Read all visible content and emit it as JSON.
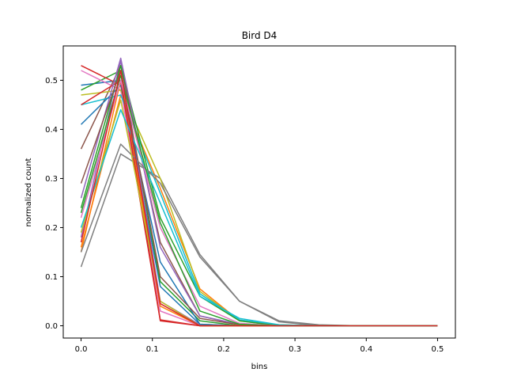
{
  "chart_data": {
    "type": "line",
    "title": "Bird D4",
    "xlabel": "bins",
    "ylabel": "normalized count",
    "xlim": [
      -0.025,
      0.525
    ],
    "ylim": [
      -0.025,
      0.57
    ],
    "xticks": [
      0.0,
      0.1,
      0.2,
      0.3,
      0.4,
      0.5
    ],
    "xtick_labels": [
      "0.0",
      "0.1",
      "0.2",
      "0.3",
      "0.4",
      "0.5"
    ],
    "yticks": [
      0.0,
      0.1,
      0.2,
      0.3,
      0.4,
      0.5
    ],
    "ytick_labels": [
      "0.0",
      "0.1",
      "0.2",
      "0.3",
      "0.4",
      "0.5"
    ],
    "grid": false,
    "legend": false,
    "x": [
      0.0,
      0.0556,
      0.1111,
      0.1667,
      0.2222,
      0.2778,
      0.3333,
      0.3889,
      0.4444,
      0.5
    ],
    "series": [
      {
        "color": "#1f77b4",
        "values": [
          0.49,
          0.5,
          0.08,
          0.003,
          0.0,
          0.0,
          0.0,
          0.0,
          0.0,
          0.0
        ]
      },
      {
        "color": "#ff7f0e",
        "values": [
          0.16,
          0.47,
          0.28,
          0.075,
          0.01,
          0.002,
          0.0,
          0.0,
          0.0,
          0.0
        ]
      },
      {
        "color": "#2ca02c",
        "values": [
          0.48,
          0.52,
          0.09,
          0.01,
          0.0,
          0.0,
          0.0,
          0.0,
          0.0,
          0.0
        ]
      },
      {
        "color": "#d62728",
        "values": [
          0.53,
          0.49,
          0.01,
          0.0,
          0.0,
          0.0,
          0.0,
          0.0,
          0.0,
          0.0
        ]
      },
      {
        "color": "#9467bd",
        "values": [
          0.18,
          0.54,
          0.05,
          0.002,
          0.0,
          0.0,
          0.0,
          0.0,
          0.0,
          0.0
        ]
      },
      {
        "color": "#8c564b",
        "values": [
          0.36,
          0.53,
          0.17,
          0.02,
          0.002,
          0.0,
          0.0,
          0.0,
          0.0,
          0.0
        ]
      },
      {
        "color": "#e377c2",
        "values": [
          0.52,
          0.48,
          0.03,
          0.0,
          0.0,
          0.0,
          0.0,
          0.0,
          0.0,
          0.0
        ]
      },
      {
        "color": "#7f7f7f",
        "values": [
          0.12,
          0.35,
          0.3,
          0.145,
          0.05,
          0.008,
          0.0,
          0.0,
          0.0,
          0.0
        ]
      },
      {
        "color": "#bcbd22",
        "values": [
          0.47,
          0.48,
          0.3,
          0.07,
          0.01,
          0.0,
          0.0,
          0.0,
          0.0,
          0.0
        ]
      },
      {
        "color": "#17becf",
        "values": [
          0.45,
          0.47,
          0.27,
          0.065,
          0.012,
          0.001,
          0.0,
          0.0,
          0.0,
          0.0
        ]
      },
      {
        "color": "#1f77b4",
        "values": [
          0.41,
          0.49,
          0.13,
          0.003,
          0.0,
          0.0,
          0.0,
          0.0,
          0.0,
          0.0
        ]
      },
      {
        "color": "#ff7f0e",
        "values": [
          0.15,
          0.5,
          0.04,
          0.0,
          0.0,
          0.0,
          0.0,
          0.0,
          0.0,
          0.0
        ]
      },
      {
        "color": "#2ca02c",
        "values": [
          0.24,
          0.53,
          0.22,
          0.06,
          0.01,
          0.0,
          0.0,
          0.0,
          0.0,
          0.0
        ]
      },
      {
        "color": "#d62728",
        "values": [
          0.45,
          0.5,
          0.012,
          0.0,
          0.0,
          0.0,
          0.0,
          0.0,
          0.0,
          0.0
        ]
      },
      {
        "color": "#9467bd",
        "values": [
          0.26,
          0.545,
          0.16,
          0.02,
          0.003,
          0.0,
          0.0,
          0.0,
          0.0,
          0.0
        ]
      },
      {
        "color": "#8c564b",
        "values": [
          0.29,
          0.52,
          0.1,
          0.015,
          0.002,
          0.0,
          0.0,
          0.0,
          0.0,
          0.0
        ]
      },
      {
        "color": "#e377c2",
        "values": [
          0.22,
          0.5,
          0.2,
          0.04,
          0.005,
          0.0,
          0.0,
          0.0,
          0.0,
          0.0
        ]
      },
      {
        "color": "#7f7f7f",
        "values": [
          0.15,
          0.37,
          0.29,
          0.14,
          0.05,
          0.01,
          0.002,
          0.0,
          0.0,
          0.0
        ]
      },
      {
        "color": "#bcbd22",
        "values": [
          0.19,
          0.46,
          0.05,
          0.0,
          0.0,
          0.0,
          0.0,
          0.0,
          0.0,
          0.0
        ]
      },
      {
        "color": "#17becf",
        "values": [
          0.2,
          0.44,
          0.25,
          0.06,
          0.015,
          0.002,
          0.0,
          0.0,
          0.0,
          0.0
        ]
      },
      {
        "color": "#2ca02c",
        "values": [
          0.23,
          0.51,
          0.21,
          0.03,
          0.003,
          0.0,
          0.0,
          0.0,
          0.0,
          0.0
        ]
      },
      {
        "color": "#d62728",
        "values": [
          0.17,
          0.52,
          0.045,
          0.0,
          0.0,
          0.0,
          0.0,
          0.0,
          0.0,
          0.0
        ]
      }
    ]
  }
}
